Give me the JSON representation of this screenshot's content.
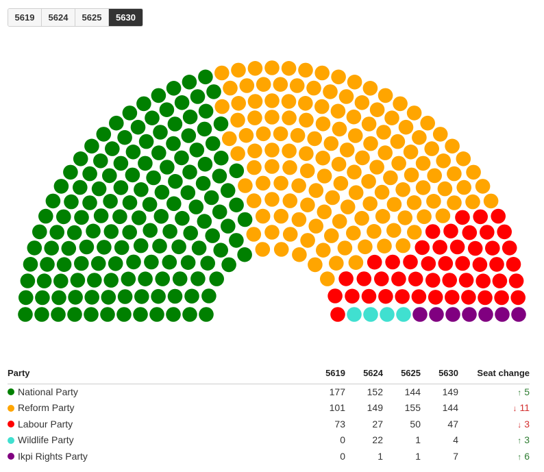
{
  "tabs": [
    {
      "label": "5619",
      "active": false
    },
    {
      "label": "5624",
      "active": false
    },
    {
      "label": "5625",
      "active": false
    },
    {
      "label": "5630",
      "active": true
    }
  ],
  "chart_data": {
    "type": "parliament",
    "selected_year": "5630",
    "total_seats": 351,
    "parties": [
      {
        "name": "National Party",
        "seats": 149,
        "color": "#008000"
      },
      {
        "name": "Reform Party",
        "seats": 144,
        "color": "#ffa500"
      },
      {
        "name": "Labour Party",
        "seats": 47,
        "color": "#ff0000"
      },
      {
        "name": "Wildlife Party",
        "seats": 4,
        "color": "#40e0d0"
      },
      {
        "name": "Ikpi Rights Party",
        "seats": 7,
        "color": "#800080"
      }
    ]
  },
  "table": {
    "headers": {
      "party": "Party",
      "y1": "5619",
      "y2": "5624",
      "y3": "5625",
      "y4": "5630",
      "change": "Seat change"
    },
    "rows": [
      {
        "party": "National Party",
        "color": "#008000",
        "y1": "177",
        "y2": "152",
        "y3": "144",
        "y4": "149",
        "arrow": "↑",
        "change": "5",
        "direction": "up"
      },
      {
        "party": "Reform Party",
        "color": "#ffa500",
        "y1": "101",
        "y2": "149",
        "y3": "155",
        "y4": "144",
        "arrow": "↓",
        "change": "11",
        "direction": "down"
      },
      {
        "party": "Labour Party",
        "color": "#ff0000",
        "y1": "73",
        "y2": "27",
        "y3": "50",
        "y4": "47",
        "arrow": "↓",
        "change": "3",
        "direction": "down"
      },
      {
        "party": "Wildlife Party",
        "color": "#40e0d0",
        "y1": "0",
        "y2": "22",
        "y3": "1",
        "y4": "4",
        "arrow": "↑",
        "change": "3",
        "direction": "up"
      },
      {
        "party": "Ikpi Rights Party",
        "color": "#800080",
        "y1": "0",
        "y2": "1",
        "y3": "1",
        "y4": "7",
        "arrow": "↑",
        "change": "6",
        "direction": "up"
      }
    ]
  }
}
